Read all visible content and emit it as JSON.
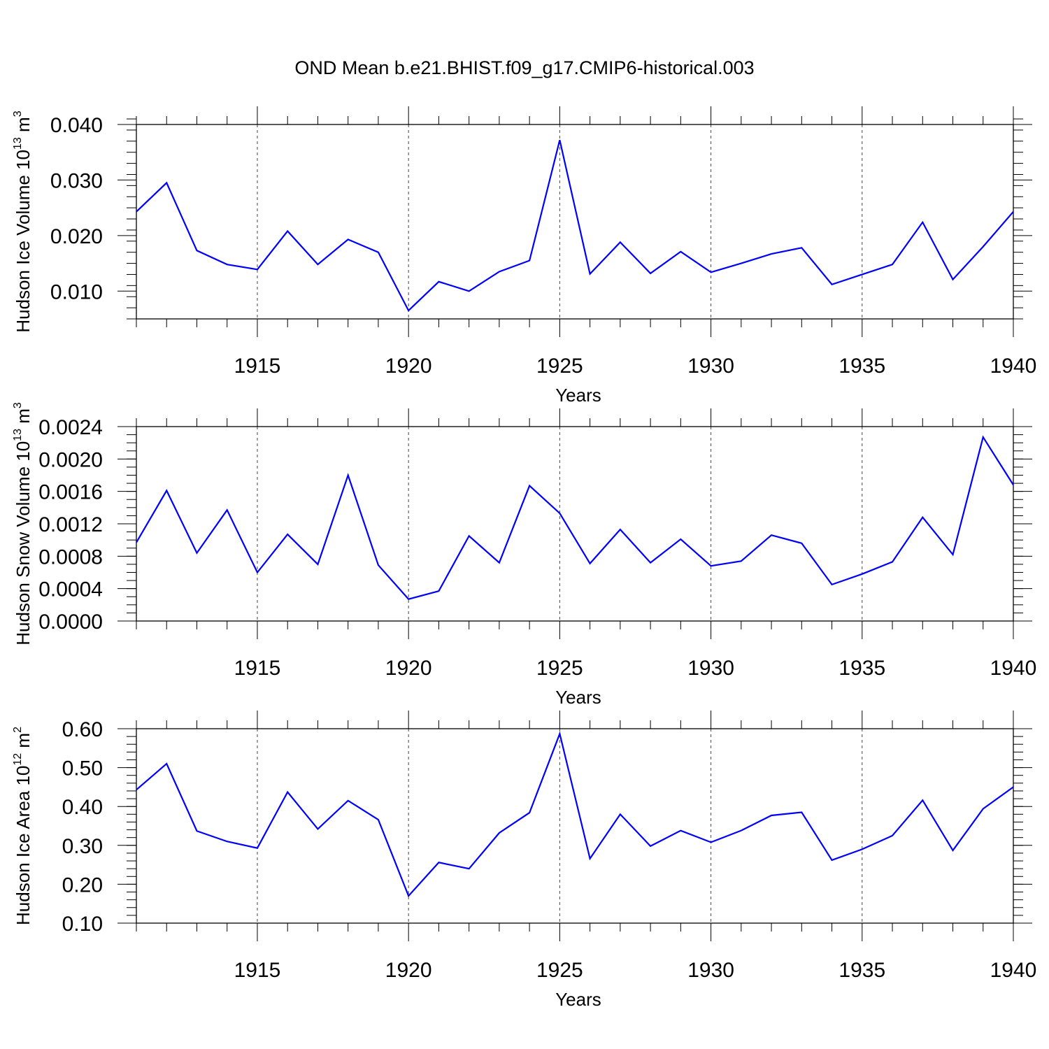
{
  "title": "OND Mean b.e21.BHIST.f09_g17.CMIP6-historical.003",
  "chart_data": [
    {
      "type": "line",
      "title": "",
      "xlabel": "Years",
      "ylabel_base": "Hudson Ice Volume 10",
      "ylabel_exp": "13",
      "ylabel_unit": "m",
      "ylabel_unit_exp": "3",
      "xlim": [
        1911,
        1940
      ],
      "ylim": [
        0.005,
        0.04
      ],
      "yticks": [
        0.01,
        0.02,
        0.03,
        0.04
      ],
      "ytick_labels": [
        "0.010",
        "0.020",
        "0.030",
        "0.040"
      ],
      "yminor_step": 0.002,
      "xticks": [
        1915,
        1920,
        1925,
        1930,
        1935,
        1940
      ],
      "xtick_labels": [
        "1915",
        "1920",
        "1925",
        "1930",
        "1935",
        "1940"
      ],
      "grid": "x-dashed",
      "series": [
        {
          "name": "Hudson Ice Volume",
          "color": "#0000ff",
          "x": [
            1911,
            1912,
            1913,
            1914,
            1915,
            1916,
            1917,
            1918,
            1919,
            1920,
            1921,
            1922,
            1923,
            1924,
            1925,
            1926,
            1927,
            1928,
            1929,
            1930,
            1931,
            1932,
            1933,
            1934,
            1935,
            1936,
            1937,
            1938,
            1939,
            1940
          ],
          "values": [
            0.0243,
            0.0295,
            0.0173,
            0.0148,
            0.0139,
            0.0208,
            0.0148,
            0.0193,
            0.017,
            0.0065,
            0.0117,
            0.01,
            0.0135,
            0.0155,
            0.0372,
            0.0131,
            0.0188,
            0.0132,
            0.0171,
            0.0134,
            0.015,
            0.0167,
            0.0178,
            0.0112,
            0.013,
            0.0148,
            0.0224,
            0.0121,
            0.018,
            0.0243
          ]
        }
      ]
    },
    {
      "type": "line",
      "title": "",
      "xlabel": "Years",
      "ylabel_base": "Hudson Snow Volume 10",
      "ylabel_exp": "13",
      "ylabel_unit": "m",
      "ylabel_unit_exp": "3",
      "xlim": [
        1911,
        1940
      ],
      "ylim": [
        0.0,
        0.0024
      ],
      "yticks": [
        0.0,
        0.0004,
        0.0008,
        0.0012,
        0.0016,
        0.002,
        0.0024
      ],
      "ytick_labels": [
        "0.0000",
        "0.0004",
        "0.0008",
        "0.0012",
        "0.0016",
        "0.0020",
        "0.0024"
      ],
      "yminor_step": 0.0001,
      "xticks": [
        1915,
        1920,
        1925,
        1930,
        1935,
        1940
      ],
      "xtick_labels": [
        "1915",
        "1920",
        "1925",
        "1930",
        "1935",
        "1940"
      ],
      "grid": "x-dashed",
      "series": [
        {
          "name": "Hudson Snow Volume",
          "color": "#0000ff",
          "x": [
            1911,
            1912,
            1913,
            1914,
            1915,
            1916,
            1917,
            1918,
            1919,
            1920,
            1921,
            1922,
            1923,
            1924,
            1925,
            1926,
            1927,
            1928,
            1929,
            1930,
            1931,
            1932,
            1933,
            1934,
            1935,
            1936,
            1937,
            1938,
            1939,
            1940
          ],
          "values": [
            0.00097,
            0.00161,
            0.00084,
            0.00137,
            0.0006,
            0.00107,
            0.0007,
            0.0018,
            0.00069,
            0.00027,
            0.00037,
            0.00105,
            0.00072,
            0.00167,
            0.00133,
            0.00071,
            0.00113,
            0.00072,
            0.00101,
            0.00068,
            0.00074,
            0.00106,
            0.00096,
            0.00045,
            0.00058,
            0.00073,
            0.00128,
            0.00082,
            0.00227,
            0.00168
          ]
        }
      ]
    },
    {
      "type": "line",
      "title": "",
      "xlabel": "Years",
      "ylabel_base": "Hudson Ice Area 10",
      "ylabel_exp": "12",
      "ylabel_unit": "m",
      "ylabel_unit_exp": "2",
      "xlim": [
        1911,
        1940
      ],
      "ylim": [
        0.1,
        0.6
      ],
      "yticks": [
        0.1,
        0.2,
        0.3,
        0.4,
        0.5,
        0.6
      ],
      "ytick_labels": [
        "0.10",
        "0.20",
        "0.30",
        "0.40",
        "0.50",
        "0.60"
      ],
      "yminor_step": 0.02,
      "xticks": [
        1915,
        1920,
        1925,
        1930,
        1935,
        1940
      ],
      "xtick_labels": [
        "1915",
        "1920",
        "1925",
        "1930",
        "1935",
        "1940"
      ],
      "grid": "x-dashed",
      "series": [
        {
          "name": "Hudson Ice Area",
          "color": "#0000ff",
          "x": [
            1911,
            1912,
            1913,
            1914,
            1915,
            1916,
            1917,
            1918,
            1919,
            1920,
            1921,
            1922,
            1923,
            1924,
            1925,
            1926,
            1927,
            1928,
            1929,
            1930,
            1931,
            1932,
            1933,
            1934,
            1935,
            1936,
            1937,
            1938,
            1939,
            1940
          ],
          "values": [
            0.443,
            0.51,
            0.337,
            0.31,
            0.293,
            0.437,
            0.342,
            0.415,
            0.366,
            0.17,
            0.256,
            0.24,
            0.332,
            0.384,
            0.587,
            0.266,
            0.38,
            0.298,
            0.338,
            0.308,
            0.338,
            0.377,
            0.385,
            0.262,
            0.29,
            0.325,
            0.416,
            0.287,
            0.394,
            0.45
          ]
        }
      ]
    }
  ]
}
